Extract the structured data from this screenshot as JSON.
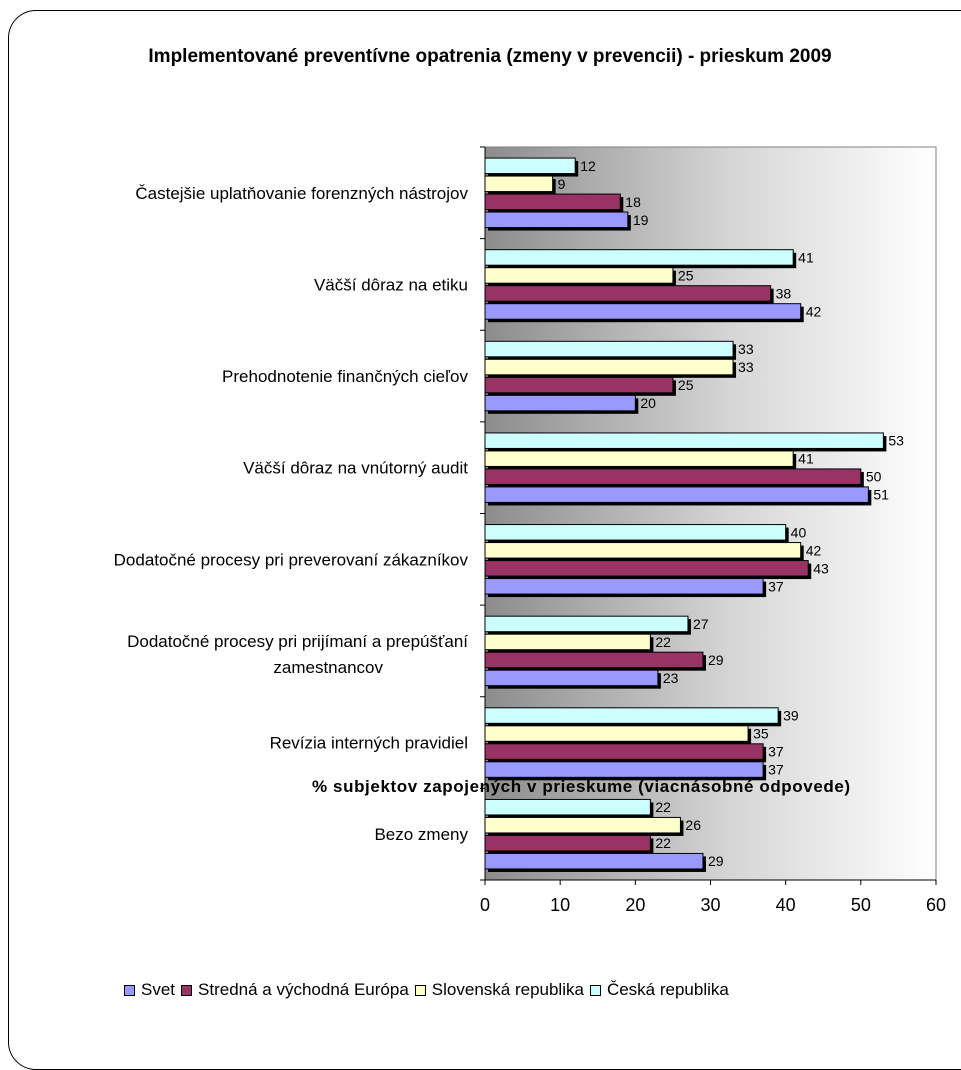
{
  "chart_data": {
    "type": "bar",
    "orientation": "horizontal",
    "title": "Implementované preventívne opatrenia (zmeny v prevencii) - prieskum 2009",
    "xlabel": "% subjektov zapojených v prieskume (viacnásobné odpovede)",
    "ylabel": "",
    "xlim": [
      0,
      60
    ],
    "xticks": [
      "0",
      "10",
      "20",
      "30",
      "40",
      "50",
      "60"
    ],
    "categories": [
      "Častejšie uplatňovanie forenzných nástrojov",
      "Väčší dôraz na etiku",
      "Prehodnotenie finančných cieľov",
      "Väčší dôraz na vnútorný audit",
      "Dodatočné procesy pri preverovaní zákazníkov",
      "Dodatočné procesy pri prijímaní a prepúšťaní zamestnancov",
      "Revízia interných pravidiel",
      "Bezo zmeny"
    ],
    "series": [
      {
        "name": "Svet",
        "color": "#9999ff",
        "values": [
          19,
          42,
          20,
          51,
          37,
          23,
          37,
          29
        ]
      },
      {
        "name": "Stredná a východná Európa",
        "color": "#993366",
        "values": [
          18,
          38,
          25,
          50,
          43,
          29,
          37,
          22
        ]
      },
      {
        "name": "Slovenská republika",
        "color": "#ffffcc",
        "values": [
          9,
          25,
          33,
          41,
          42,
          22,
          35,
          26
        ]
      },
      {
        "name": "Česká republika",
        "color": "#ccffff",
        "values": [
          12,
          41,
          33,
          53,
          40,
          27,
          39,
          22
        ]
      }
    ],
    "legend_position": "bottom",
    "grid": false,
    "background": "gradient gray to white"
  }
}
